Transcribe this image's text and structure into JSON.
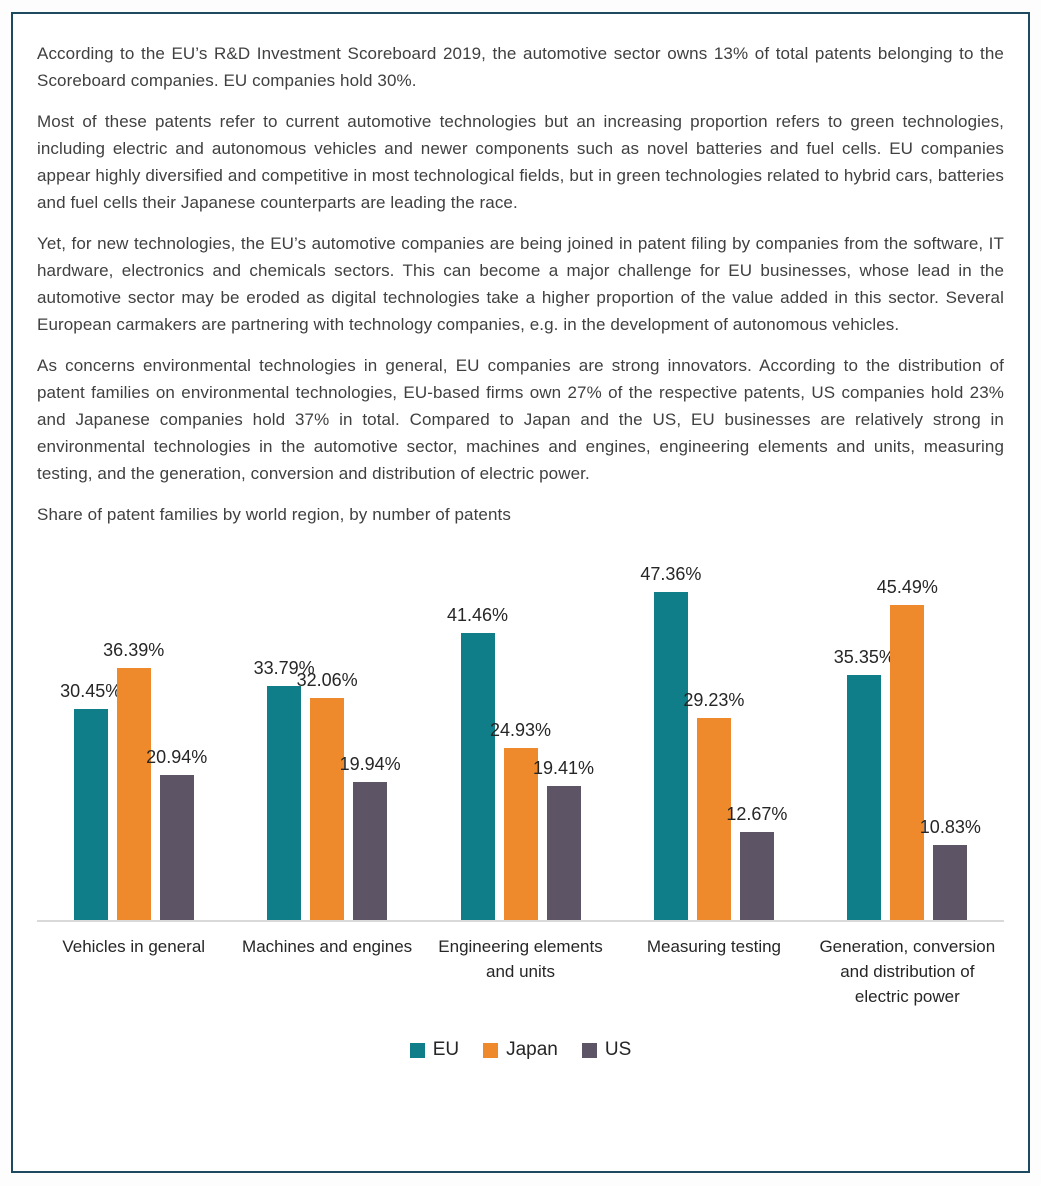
{
  "document": {
    "paragraphs": [
      "According to the EU’s R&D Investment Scoreboard 2019, the automotive sector owns 13% of total patents belonging to the Scoreboard companies. EU companies hold 30%.",
      "Most of these patents refer to current automotive technologies but an increasing proportion refers to green technologies, including electric and autonomous vehicles and newer components such as novel batteries and fuel cells. EU companies appear highly diversified and competitive in most technological fields, but in green technologies related to hybrid cars, batteries and fuel cells their Japanese counterparts are leading the race.",
      "Yet, for new technologies, the EU’s automotive companies are being joined in patent filing by companies from the software, IT hardware, electronics and chemicals sectors. This can become a major challenge for EU businesses, whose lead in the automotive sector may be eroded as digital technologies take a higher proportion of the value added in this sector. Several European carmakers are partnering with technology companies, e.g. in the development of autonomous vehicles.",
      "As concerns environmental technologies in general, EU companies are strong innovators. According to the distribution of patent families on environmental technologies, EU-based firms own 27% of the respective patents, US companies hold 23% and Japanese companies hold 37% in total. Compared to Japan and the US, EU businesses are relatively strong in environmental technologies in the automotive sector, machines and engines, engineering elements and units, measuring testing, and the generation, conversion and distribution of electric power."
    ],
    "chart_caption": "Share of patent families by world region, by number of patents"
  },
  "chart_data": {
    "type": "bar",
    "title": "Share of patent families by world region, by number of patents",
    "categories": [
      "Vehicles in general",
      "Machines and engines",
      "Engineering elements and units",
      "Measuring testing",
      "Generation, conversion and distribution of electric power"
    ],
    "series": [
      {
        "name": "EU",
        "color": "#0F7E88",
        "values": [
          30.45,
          33.79,
          41.46,
          47.36,
          35.35
        ]
      },
      {
        "name": "Japan",
        "color": "#EE8A2C",
        "values": [
          36.39,
          32.06,
          24.93,
          29.23,
          45.49
        ]
      },
      {
        "name": "US",
        "color": "#5D5465",
        "values": [
          20.94,
          19.94,
          19.41,
          12.67,
          10.83
        ]
      }
    ],
    "data_labels": true,
    "data_label_suffix": "%",
    "ylim": [
      0,
      50
    ],
    "gridlines": false,
    "legend_position": "bottom",
    "xlabel": "",
    "ylabel": ""
  },
  "style": {
    "frame_border_color": "#1E4A5F",
    "axis_line_color": "#D9D9D9",
    "body_text_color": "#404040",
    "chart_text_color": "#262626"
  }
}
